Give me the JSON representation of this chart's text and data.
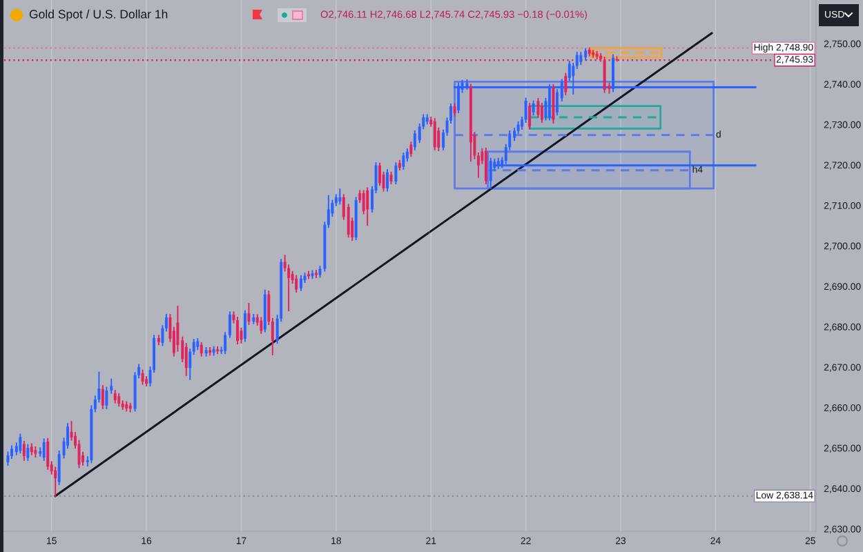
{
  "chart_data": [
    {
      "type": "candlestick",
      "title": "Gold Spot / U.S. Dollar 1h",
      "subtitle": "O2,746.11 H2,746.68 L2,745.74 C2,745.93 −0.18 (−0.01%)",
      "annotations": [
        "USD"
      ],
      "x": [
        14.54,
        14.58,
        14.63,
        14.67,
        14.71,
        14.75,
        14.79,
        14.83,
        14.88,
        14.92,
        14.96,
        15,
        15.04,
        15.08,
        15.13,
        15.17,
        15.21,
        15.25,
        15.29,
        15.33,
        15.38,
        15.42,
        15.46,
        15.5,
        15.54,
        15.58,
        15.63,
        15.67,
        15.71,
        15.75,
        15.79,
        15.83,
        15.88,
        15.92,
        15.96,
        16,
        16.04,
        16.08,
        16.13,
        16.17,
        16.21,
        16.25,
        16.29,
        16.33,
        16.38,
        16.42,
        16.46,
        16.5,
        16.54,
        16.58,
        16.63,
        16.67,
        16.71,
        16.75,
        16.79,
        16.83,
        16.88,
        16.92,
        16.96,
        17,
        17.04,
        17.08,
        17.13,
        17.17,
        17.21,
        17.25,
        17.29,
        17.33,
        17.38,
        17.42,
        17.46,
        17.5,
        17.54,
        17.58,
        17.63,
        17.67,
        17.71,
        17.75,
        17.79,
        17.83,
        17.88,
        17.92,
        17.96,
        18,
        18.04,
        18.08,
        18.13,
        18.17,
        18.21,
        18.25,
        18.29,
        18.33,
        18.38,
        18.42,
        18.46,
        18.5,
        18.54,
        18.58,
        18.63,
        18.67,
        18.71,
        18.75,
        18.79,
        18.83,
        18.88,
        18.92,
        18.96
      ],
      "ohlc": [
        [
          2646.5,
          2649.0,
          2645.8,
          2648.2
        ],
        [
          2648.0,
          2650.5,
          2647.5,
          2649.8
        ],
        [
          2649.0,
          2651.2,
          2648.4,
          2650.5
        ],
        [
          2649.3,
          2653.4,
          2648.8,
          2652.7
        ],
        [
          2651.0,
          2651.6,
          2647.0,
          2648.0
        ],
        [
          2647.6,
          2650.8,
          2647.0,
          2650.0
        ],
        [
          2650.3,
          2651.0,
          2648.4,
          2649.0
        ],
        [
          2649.5,
          2650.2,
          2647.8,
          2648.6
        ],
        [
          2648.6,
          2650.0,
          2648.0,
          2649.2
        ],
        [
          2647.6,
          2652.2,
          2647.0,
          2651.4
        ],
        [
          2651.6,
          2652.3,
          2644.8,
          2645.4
        ],
        [
          2645.9,
          2646.6,
          2643.6,
          2644.2
        ],
        [
          2644.5,
          2645.2,
          2638.14,
          2642.5
        ],
        [
          2641.6,
          2649.2,
          2641.0,
          2648.5
        ],
        [
          2648.2,
          2652.4,
          2647.6,
          2651.6
        ],
        [
          2650.6,
          2656.0,
          2650.0,
          2655.3
        ],
        [
          2654.0,
          2656.5,
          2652.0,
          2652.6
        ],
        [
          2653.0,
          2653.8,
          2650.0,
          2650.6
        ],
        [
          2651.0,
          2651.8,
          2645.2,
          2645.9
        ],
        [
          2648.2,
          2648.9,
          2645.8,
          2646.5
        ],
        [
          2646.5,
          2647.8,
          2645.6,
          2647.0
        ],
        [
          2647.0,
          2660.4,
          2646.4,
          2659.6
        ],
        [
          2659.6,
          2662.8,
          2659.0,
          2662.0
        ],
        [
          2662.0,
          2668.7,
          2661.4,
          2664.7
        ],
        [
          2664.6,
          2665.4,
          2659.8,
          2660.5
        ],
        [
          2660.5,
          2665.0,
          2659.8,
          2664.2
        ],
        [
          2664.2,
          2667.0,
          2663.6,
          2665.3
        ],
        [
          2663.5,
          2664.2,
          2661.2,
          2661.8
        ],
        [
          2662.8,
          2663.4,
          2660.4,
          2661.0
        ],
        [
          2661.0,
          2661.6,
          2659.6,
          2660.1
        ],
        [
          2660.8,
          2661.4,
          2659.2,
          2659.8
        ],
        [
          2660.5,
          2661.0,
          2659.0,
          2659.7
        ],
        [
          2659.7,
          2668.6,
          2659.2,
          2668.0
        ],
        [
          2668.0,
          2670.6,
          2667.4,
          2670.0
        ],
        [
          2668.5,
          2669.2,
          2665.8,
          2666.4
        ],
        [
          2667.0,
          2667.6,
          2665.4,
          2665.9
        ],
        [
          2666.0,
          2670.0,
          2665.4,
          2669.3
        ],
        [
          2669.3,
          2677.8,
          2668.8,
          2677.2
        ],
        [
          2677.2,
          2677.8,
          2675.6,
          2676.2
        ],
        [
          2676.0,
          2680.2,
          2675.4,
          2679.6
        ],
        [
          2679.6,
          2683.0,
          2679.0,
          2682.3
        ],
        [
          2682.3,
          2683.0,
          2676.4,
          2677.0
        ],
        [
          2679.0,
          2679.8,
          2672.8,
          2673.5
        ],
        [
          2681.0,
          2685.0,
          2674.0,
          2675.5
        ],
        [
          2676.6,
          2677.4,
          2671.4,
          2672.0
        ],
        [
          2675.0,
          2675.8,
          2668.0,
          2669.8
        ],
        [
          2669.8,
          2674.4,
          2667.0,
          2673.8
        ],
        [
          2673.8,
          2676.8,
          2673.2,
          2676.2
        ],
        [
          2675.0,
          2677.0,
          2674.4,
          2676.4
        ],
        [
          2675.5,
          2676.0,
          2672.8,
          2673.4
        ],
        [
          2673.4,
          2674.8,
          2672.8,
          2674.2
        ],
        [
          2674.2,
          2674.8,
          2673.0,
          2673.6
        ],
        [
          2673.6,
          2675.0,
          2673.0,
          2674.4
        ],
        [
          2674.4,
          2675.0,
          2673.4,
          2673.9
        ],
        [
          2673.9,
          2674.9,
          2673.4,
          2674.3
        ],
        [
          2674.0,
          2678.5,
          2673.4,
          2677.9
        ],
        [
          2677.9,
          2683.6,
          2677.4,
          2683.0
        ],
        [
          2683.0,
          2683.6,
          2681.0,
          2681.6
        ],
        [
          2681.6,
          2682.3,
          2675.8,
          2676.5
        ],
        [
          2679.0,
          2679.6,
          2676.0,
          2676.8
        ],
        [
          2677.0,
          2683.9,
          2676.4,
          2683.3
        ],
        [
          2683.3,
          2685.7,
          2680.6,
          2681.3
        ],
        [
          2681.3,
          2683.0,
          2680.8,
          2682.3
        ],
        [
          2682.3,
          2682.9,
          2680.4,
          2681.0
        ],
        [
          2681.5,
          2682.2,
          2678.4,
          2679.0
        ],
        [
          2679.3,
          2689.0,
          2678.8,
          2688.0
        ],
        [
          2688.0,
          2688.8,
          2680.6,
          2681.3
        ],
        [
          2681.3,
          2682.0,
          2673.1,
          2676.5
        ],
        [
          2676.5,
          2682.8,
          2676.0,
          2682.0
        ],
        [
          2682.0,
          2696.6,
          2681.4,
          2696.0
        ],
        [
          2696.0,
          2697.6,
          2693.8,
          2694.5
        ],
        [
          2694.5,
          2695.2,
          2684.0,
          2692.0
        ],
        [
          2693.0,
          2693.6,
          2690.8,
          2691.5
        ],
        [
          2691.9,
          2692.6,
          2688.6,
          2689.2
        ],
        [
          2689.5,
          2692.6,
          2689.0,
          2691.9
        ],
        [
          2691.5,
          2693.2,
          2691.0,
          2692.6
        ],
        [
          2693.0,
          2693.6,
          2692.0,
          2692.5
        ],
        [
          2692.5,
          2693.8,
          2692.0,
          2693.2
        ],
        [
          2693.3,
          2693.9,
          2692.2,
          2692.8
        ],
        [
          2692.8,
          2694.9,
          2692.3,
          2694.3
        ],
        [
          2694.3,
          2705.8,
          2693.8,
          2705.2
        ],
        [
          2705.2,
          2712.4,
          2704.6,
          2709.0
        ],
        [
          2708.0,
          2711.2,
          2707.4,
          2710.6
        ],
        [
          2710.6,
          2712.6,
          2710.0,
          2712.0
        ],
        [
          2711.0,
          2714.0,
          2710.4,
          2712.0
        ],
        [
          2712.0,
          2712.6,
          2706.6,
          2707.2
        ],
        [
          2709.6,
          2710.2,
          2702.2,
          2702.8
        ],
        [
          2706.2,
          2706.8,
          2701.4,
          2702.1
        ],
        [
          2702.1,
          2711.9,
          2701.6,
          2711.3
        ],
        [
          2713.0,
          2713.6,
          2710.8,
          2711.3
        ],
        [
          2713.0,
          2713.6,
          2708.0,
          2708.6
        ],
        [
          2713.7,
          2714.3,
          2705.1,
          2709.0
        ],
        [
          2709.0,
          2714.6,
          2708.4,
          2714.0
        ],
        [
          2713.7,
          2720.5,
          2713.2,
          2719.9
        ],
        [
          2719.9,
          2720.4,
          2715.0,
          2715.5
        ],
        [
          2717.6,
          2718.2,
          2713.6,
          2714.2
        ],
        [
          2714.2,
          2718.8,
          2713.6,
          2718.2
        ],
        [
          2717.6,
          2718.2,
          2715.4,
          2715.9
        ],
        [
          2715.9,
          2720.5,
          2715.4,
          2719.9
        ],
        [
          2720.5,
          2721.1,
          2718.8,
          2719.3
        ],
        [
          2719.6,
          2722.9,
          2719.0,
          2722.3
        ],
        [
          2721.6,
          2723.9,
          2721.0,
          2723.3
        ],
        [
          2725.0,
          2725.6,
          2722.2,
          2722.7
        ],
        [
          2724.4,
          2728.4,
          2723.8,
          2727.8
        ],
        [
          2726.1,
          2730.1,
          2725.6,
          2729.5
        ],
        [
          2729.5,
          2732.4,
          2729.0,
          2731.8
        ],
        [
          2730.7,
          2732.4,
          2730.2,
          2731.8
        ]
      ],
      "colors": [
        "#2962ff",
        "#2962ff",
        "#2962ff",
        "#2962ff",
        "#e0245e",
        "#2962ff",
        "#e0245e",
        "#e0245e",
        "#2962ff",
        "#2962ff",
        "#e0245e",
        "#e0245e",
        "#e0245e",
        "#2962ff",
        "#2962ff",
        "#2962ff",
        "#e0245e",
        "#e0245e",
        "#e0245e",
        "#e0245e",
        "#2962ff",
        "#2962ff",
        "#2962ff",
        "#2962ff",
        "#e0245e",
        "#2962ff",
        "#2962ff",
        "#e0245e",
        "#e0245e",
        "#e0245e",
        "#e0245e",
        "#e0245e",
        "#2962ff",
        "#2962ff",
        "#e0245e",
        "#e0245e",
        "#2962ff",
        "#2962ff",
        "#e0245e",
        "#2962ff",
        "#2962ff",
        "#e0245e",
        "#e0245e",
        "#e0245e",
        "#e0245e",
        "#e0245e",
        "#2962ff",
        "#2962ff",
        "#2962ff",
        "#e0245e",
        "#2962ff",
        "#e0245e",
        "#2962ff",
        "#e0245e",
        "#2962ff",
        "#2962ff",
        "#2962ff",
        "#e0245e",
        "#e0245e",
        "#e0245e",
        "#2962ff",
        "#e0245e",
        "#2962ff",
        "#e0245e",
        "#e0245e",
        "#2962ff",
        "#e0245e",
        "#e0245e",
        "#2962ff",
        "#2962ff",
        "#e0245e",
        "#e0245e",
        "#e0245e",
        "#e0245e",
        "#2962ff",
        "#2962ff",
        "#e0245e",
        "#2962ff",
        "#e0245e",
        "#2962ff",
        "#2962ff",
        "#2962ff",
        "#2962ff",
        "#2962ff",
        "#2962ff",
        "#e0245e",
        "#e0245e",
        "#e0245e",
        "#2962ff",
        "#e0245e",
        "#e0245e",
        "#e0245e",
        "#2962ff",
        "#2962ff",
        "#e0245e",
        "#e0245e",
        "#2962ff",
        "#e0245e",
        "#2962ff",
        "#e0245e",
        "#2962ff",
        "#2962ff",
        "#e0245e",
        "#2962ff",
        "#2962ff",
        "#2962ff",
        "#2962ff"
      ],
      "series": [
        {
          "type": "line",
          "color": "#131722",
          "x": [
            15.04,
            18.98
          ],
          "values": [
            2638.14,
            2703.3
          ]
        }
      ],
      "ref_lines": [
        {
          "axis": "y",
          "value": 2748.9,
          "color": "#e57399",
          "line_style": "dotted"
        },
        {
          "axis": "y",
          "value": 2745.93,
          "color": "#d81b60",
          "line_style": "dotted"
        },
        {
          "axis": "y",
          "value": 2638.14,
          "color": "#8a8d96",
          "line_style": "dotted"
        }
      ],
      "xlim": [
        14.5,
        18.98
      ],
      "xticks": [
        15,
        16,
        17,
        18
      ],
      "ylim": [
        2629.4,
        2760.8
      ],
      "tick_labels": "x",
      "grid": "x"
    },
    {
      "type": "candlestick",
      "x": [
        21,
        21.04,
        21.08,
        21.13,
        21.17,
        21.21,
        21.25,
        21.29,
        21.33,
        21.38,
        21.42,
        21.46,
        21.5,
        21.54,
        21.58,
        21.63,
        21.67,
        21.71,
        21.75,
        21.79,
        21.83,
        21.88,
        21.92,
        21.96,
        22,
        22.04,
        22.08,
        22.13,
        22.17,
        22.21,
        22.25,
        22.29,
        22.33,
        22.38,
        22.42,
        22.46,
        22.5,
        22.54,
        22.58,
        22.63,
        22.67,
        22.71,
        22.75,
        22.79,
        22.83,
        22.88,
        22.92,
        22.96
      ],
      "ohlc": [
        [
          2731.2,
          2731.8,
          2729.6,
          2730.1
        ],
        [
          2730.8,
          2731.4,
          2723.8,
          2724.4
        ],
        [
          2728.5,
          2729.1,
          2723.6,
          2724.3
        ],
        [
          2724.3,
          2728.6,
          2723.8,
          2728.0
        ],
        [
          2728.0,
          2731.6,
          2727.4,
          2731.0
        ],
        [
          2731.0,
          2735.1,
          2730.4,
          2734.5
        ],
        [
          2734.5,
          2735.1,
          2732.2,
          2732.8
        ],
        [
          2733.5,
          2740.2,
          2733.0,
          2739.6
        ],
        [
          2738.6,
          2740.9,
          2738.0,
          2740.3
        ],
        [
          2739.3,
          2741.0,
          2738.8,
          2740.3
        ],
        [
          2739.3,
          2739.9,
          2721.0,
          2725.6
        ],
        [
          2727.4,
          2728.0,
          2721.6,
          2722.3
        ],
        [
          2722.3,
          2722.9,
          2717.0,
          2719.9
        ],
        [
          2723.3,
          2724.0,
          2720.4,
          2721.0
        ],
        [
          2723.5,
          2724.1,
          2715.4,
          2716.0
        ],
        [
          2716.0,
          2721.6,
          2714.2,
          2721.0
        ],
        [
          2719.3,
          2721.4,
          2718.6,
          2720.8
        ],
        [
          2719.8,
          2721.6,
          2719.2,
          2721.0
        ],
        [
          2720.0,
          2721.8,
          2719.4,
          2721.2
        ],
        [
          2721.0,
          2725.0,
          2720.4,
          2724.4
        ],
        [
          2724.4,
          2728.4,
          2723.8,
          2727.8
        ],
        [
          2726.7,
          2729.0,
          2726.1,
          2728.4
        ],
        [
          2728.4,
          2730.6,
          2727.8,
          2730.0
        ],
        [
          2729.5,
          2731.8,
          2728.9,
          2731.2
        ],
        [
          2731.2,
          2736.5,
          2730.6,
          2735.9
        ],
        [
          2734.6,
          2735.2,
          2728.9,
          2729.5
        ],
        [
          2733.0,
          2735.8,
          2732.4,
          2735.2
        ],
        [
          2735.8,
          2736.4,
          2731.8,
          2732.4
        ],
        [
          2734.6,
          2735.2,
          2730.6,
          2731.2
        ],
        [
          2731.8,
          2736.4,
          2731.2,
          2735.8
        ],
        [
          2731.8,
          2739.8,
          2731.2,
          2739.2
        ],
        [
          2739.2,
          2739.8,
          2730.4,
          2731.2
        ],
        [
          2733.0,
          2738.6,
          2732.4,
          2738.0
        ],
        [
          2736.5,
          2741.1,
          2735.9,
          2740.5
        ],
        [
          2742.0,
          2742.6,
          2737.4,
          2738.0
        ],
        [
          2741.5,
          2745.6,
          2740.9,
          2745.0
        ],
        [
          2742.0,
          2745.1,
          2737.6,
          2744.5
        ],
        [
          2744.5,
          2747.8,
          2743.9,
          2747.2
        ],
        [
          2745.5,
          2747.8,
          2744.9,
          2747.2
        ],
        [
          2746.6,
          2748.7,
          2746.0,
          2748.3
        ],
        [
          2748.5,
          2748.9,
          2747.0,
          2747.5
        ],
        [
          2747.8,
          2748.3,
          2746.7,
          2747.2
        ],
        [
          2747.5,
          2748.0,
          2746.3,
          2746.8
        ],
        [
          2747.0,
          2747.5,
          2745.7,
          2746.2
        ],
        [
          2746.0,
          2746.6,
          2738.0,
          2738.6
        ],
        [
          2739.6,
          2740.2,
          2737.8,
          2738.8
        ],
        [
          2738.8,
          2747.2,
          2738.2,
          2746.5
        ],
        [
          2746.11,
          2746.68,
          2745.74,
          2745.93
        ]
      ],
      "colors": [
        "#e0245e",
        "#e0245e",
        "#e0245e",
        "#2962ff",
        "#2962ff",
        "#2962ff",
        "#e0245e",
        "#2962ff",
        "#2962ff",
        "#2962ff",
        "#e0245e",
        "#e0245e",
        "#e0245e",
        "#e0245e",
        "#e0245e",
        "#2962ff",
        "#2962ff",
        "#2962ff",
        "#2962ff",
        "#2962ff",
        "#2962ff",
        "#2962ff",
        "#2962ff",
        "#2962ff",
        "#2962ff",
        "#e0245e",
        "#2962ff",
        "#e0245e",
        "#e0245e",
        "#2962ff",
        "#2962ff",
        "#e0245e",
        "#2962ff",
        "#2962ff",
        "#e0245e",
        "#2962ff",
        "#2962ff",
        "#2962ff",
        "#2962ff",
        "#2962ff",
        "#e0245e",
        "#e0245e",
        "#e0245e",
        "#e0245e",
        "#e0245e",
        "#e0245e",
        "#2962ff",
        "#e0245e"
      ],
      "series": [
        {
          "type": "line",
          "color": "#131722",
          "x": [
            20.98,
            23.96
          ],
          "values": [
            2703.3,
            2752.6
          ]
        },
        {
          "type": "line",
          "name": "d",
          "color": "#5b7be6",
          "line_style": "dashed",
          "x": [
            21.25,
            23.98
          ],
          "values": [
            2727.4,
            2727.4
          ],
          "lower": [
            2714.2,
            2714.2
          ],
          "upper": [
            2740.6,
            2740.6
          ]
        },
        {
          "type": "line",
          "name": "h4",
          "color": "#5b7be6",
          "line_style": "dashed",
          "x": [
            21.6,
            23.73
          ],
          "values": [
            2718.7,
            2718.7
          ],
          "lower": [
            2714.2,
            2714.2
          ],
          "upper": [
            2723.3,
            2723.3
          ]
        },
        {
          "type": "line",
          "color": "#26a69a",
          "line_style": "dashed",
          "x": [
            22.04,
            23.42
          ],
          "values": [
            2731.8,
            2731.8
          ],
          "lower": [
            2729,
            2729
          ],
          "upper": [
            2734.6,
            2734.6
          ]
        },
        {
          "type": "line",
          "color": "#f7a23b",
          "line_style": "dashed",
          "x": [
            22.69,
            23.43
          ],
          "values": [
            2747.8,
            2747.8
          ],
          "lower": [
            2746.6,
            2746.6
          ],
          "upper": [
            2748.9,
            2748.9
          ]
        },
        {
          "type": "line",
          "color": "#2962ff",
          "x": [
            21.25,
            24.42
          ],
          "values": [
            2739.2,
            2739.2
          ]
        },
        {
          "type": "line",
          "color": "#2962ff",
          "x": [
            21.67,
            24.42
          ],
          "values": [
            2719.9,
            2719.9
          ]
        }
      ],
      "ref_lines": [
        {
          "axis": "y",
          "value": 2748.9,
          "label": "High 2,748.90",
          "color": "#e57399",
          "line_style": "dotted"
        },
        {
          "axis": "y",
          "value": 2745.93,
          "label": "2,745.93",
          "color": "#d81b60",
          "line_style": "dotted"
        },
        {
          "axis": "y",
          "value": 2638.14,
          "label": "Low 2,638.14",
          "color": "#8a8d96",
          "line_style": "dotted"
        }
      ],
      "xlim": [
        20.98,
        25.06
      ],
      "xticks": [
        21,
        22,
        23,
        24,
        25
      ],
      "ylim": [
        2629.4,
        2760.8
      ],
      "yticks": [
        {
          "value": 2630,
          "label": "2,630.00"
        },
        {
          "value": 2640,
          "label": "2,640.00"
        },
        {
          "value": 2650,
          "label": "2,650.00"
        },
        {
          "value": 2660,
          "label": "2,660.00"
        },
        {
          "value": 2670,
          "label": "2,670.00"
        },
        {
          "value": 2680,
          "label": "2,680.00"
        },
        {
          "value": 2690,
          "label": "2,690.00"
        },
        {
          "value": 2700,
          "label": "2,700.00"
        },
        {
          "value": 2710,
          "label": "2,710.00"
        },
        {
          "value": 2720,
          "label": "2,720.00"
        },
        {
          "value": 2730,
          "label": "2,730.00"
        },
        {
          "value": 2740,
          "label": "2,740.00"
        },
        {
          "value": 2750,
          "label": "2,750.00"
        }
      ],
      "grid": "x"
    }
  ]
}
